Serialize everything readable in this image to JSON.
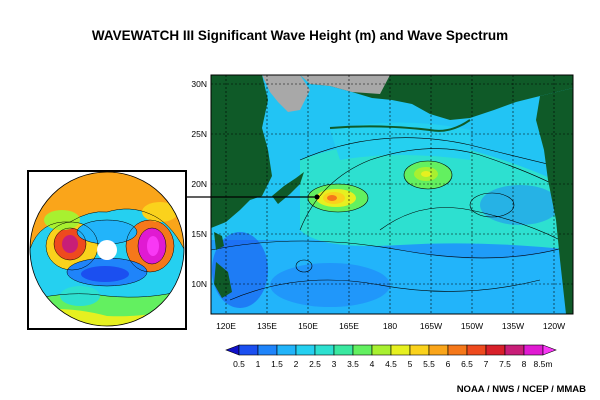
{
  "title": "WAVEWATCH III Significant Wave Height (m) and Wave Spectrum",
  "credit": "NOAA / NWS / NCEP / MMAB",
  "map": {
    "lat_ticks": [
      "30N",
      "25N",
      "20N",
      "15N",
      "10N"
    ],
    "lon_ticks": [
      "120E",
      "135E",
      "150E",
      "165E",
      "180",
      "165W",
      "150W",
      "135W",
      "120W"
    ],
    "grid": true
  },
  "colorbar": {
    "labels": [
      "0.5",
      "1",
      "1.5",
      "2",
      "2.5",
      "3",
      "3.5",
      "4",
      "4.5",
      "5",
      "5.5",
      "6",
      "6.5",
      "7",
      "7.5",
      "8",
      "8.5m"
    ],
    "colors": [
      "#1010c8",
      "#1b4ff0",
      "#1f84fa",
      "#22b4fa",
      "#25d0f0",
      "#2de0d0",
      "#3ae8a0",
      "#63f060",
      "#a8f030",
      "#e6f020",
      "#fad21c",
      "#faa51a",
      "#f5781a",
      "#ee4a1e",
      "#d8202a",
      "#c81e78",
      "#e01ad2",
      "#f838f5"
    ]
  },
  "colors": {
    "land": "#0f5a28",
    "ice": "#a8a8a8",
    "ocean_low": "#22b4fa",
    "ocean_mid": "#2de0d0"
  }
}
